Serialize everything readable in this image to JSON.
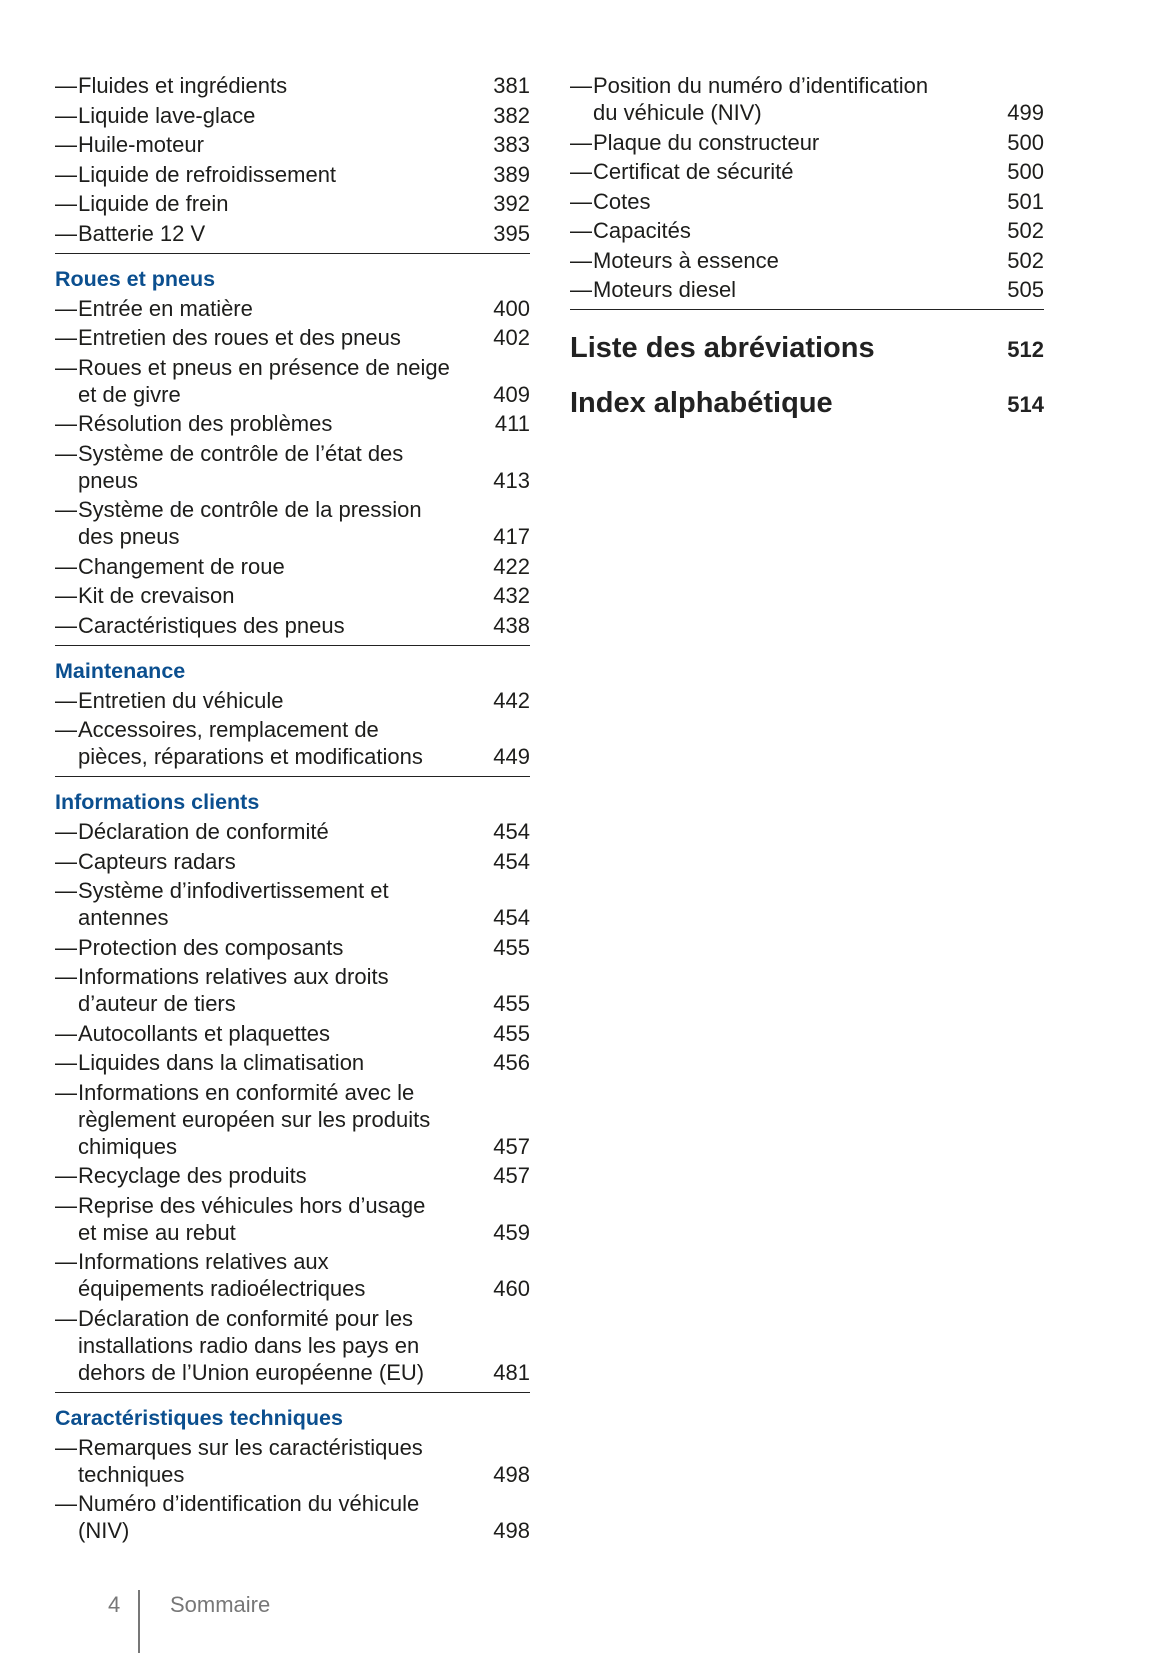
{
  "colors": {
    "section_heading": "#0b4f8f",
    "text": "#1d1d1b",
    "footer": "#777777"
  },
  "left": [
    {
      "heading": null,
      "items": [
        {
          "text": "Fluides et ingrédients",
          "page": "381"
        },
        {
          "text": "Liquide lave-glace",
          "page": "382"
        },
        {
          "text": "Huile-moteur",
          "page": "383"
        },
        {
          "text": "Liquide de refroidissement",
          "page": "389"
        },
        {
          "text": "Liquide de frein",
          "page": "392"
        },
        {
          "text": "Batterie 12 V",
          "page": "395"
        }
      ],
      "rule": true
    },
    {
      "heading": "Roues et pneus",
      "items": [
        {
          "text": "Entrée en matière",
          "page": "400"
        },
        {
          "text": "Entretien des roues et des pneus",
          "page": "402"
        },
        {
          "text": "Roues et pneus en présence de neige\net de givre",
          "page": "409"
        },
        {
          "text": "Résolution des problèmes",
          "page": "411"
        },
        {
          "text": "Système de contrôle de l’état des\npneus",
          "page": "413"
        },
        {
          "text": "Système de contrôle de la pression\ndes pneus",
          "page": "417"
        },
        {
          "text": "Changement de roue",
          "page": "422"
        },
        {
          "text": "Kit de crevaison",
          "page": "432"
        },
        {
          "text": "Caractéristiques des pneus",
          "page": "438"
        }
      ],
      "rule": true
    },
    {
      "heading": "Maintenance",
      "items": [
        {
          "text": "Entretien du véhicule",
          "page": "442"
        },
        {
          "text": "Accessoires, remplacement de\npièces, réparations et modifications",
          "page": "449"
        }
      ],
      "rule": true
    },
    {
      "heading": "Informations clients",
      "items": [
        {
          "text": "Déclaration de conformité",
          "page": "454"
        },
        {
          "text": "Capteurs radars",
          "page": "454"
        },
        {
          "text": "Système d’infodivertissement et\nantennes",
          "page": "454"
        },
        {
          "text": "Protection des composants",
          "page": "455"
        },
        {
          "text": "Informations relatives aux droits\nd’auteur de tiers",
          "page": "455"
        },
        {
          "text": "Autocollants et plaquettes",
          "page": "455"
        },
        {
          "text": "Liquides dans la climatisation",
          "page": "456"
        },
        {
          "text": "Informations en conformité avec le\nrèglement européen sur les produits\nchimiques",
          "page": "457"
        },
        {
          "text": "Recyclage des produits",
          "page": "457"
        },
        {
          "text": "Reprise des véhicules hors d’usage\net mise au rebut",
          "page": "459"
        },
        {
          "text": "Informations relatives aux\néquipements radioélectriques",
          "page": "460"
        },
        {
          "text": "Déclaration de conformité pour les\ninstallations radio dans les pays en\ndehors de l’Union européenne (EU)",
          "page": "481"
        }
      ],
      "rule": true
    },
    {
      "heading": "Caractéristiques techniques",
      "items": [
        {
          "text": "Remarques sur les caractéristiques\ntechniques",
          "page": "498"
        },
        {
          "text": "Numéro d’identification du véhicule\n(NIV)",
          "page": "498"
        }
      ],
      "rule": false
    }
  ],
  "right": [
    {
      "heading": null,
      "items": [
        {
          "text": "Position du numéro d’identification\ndu véhicule (NIV)",
          "page": "499"
        },
        {
          "text": "Plaque du constructeur",
          "page": "500"
        },
        {
          "text": "Certificat de sécurité",
          "page": "500"
        },
        {
          "text": "Cotes",
          "page": "501"
        },
        {
          "text": "Capacités",
          "page": "502"
        },
        {
          "text": "Moteurs à essence",
          "page": "502"
        },
        {
          "text": "Moteurs diesel",
          "page": "505"
        }
      ],
      "rule": true
    }
  ],
  "chapters": [
    {
      "title": "Liste des abréviations",
      "page": "512"
    },
    {
      "title": "Index alphabétique",
      "page": "514"
    }
  ],
  "dash": "—",
  "footer": {
    "page_number": "4",
    "label": "Sommaire"
  }
}
